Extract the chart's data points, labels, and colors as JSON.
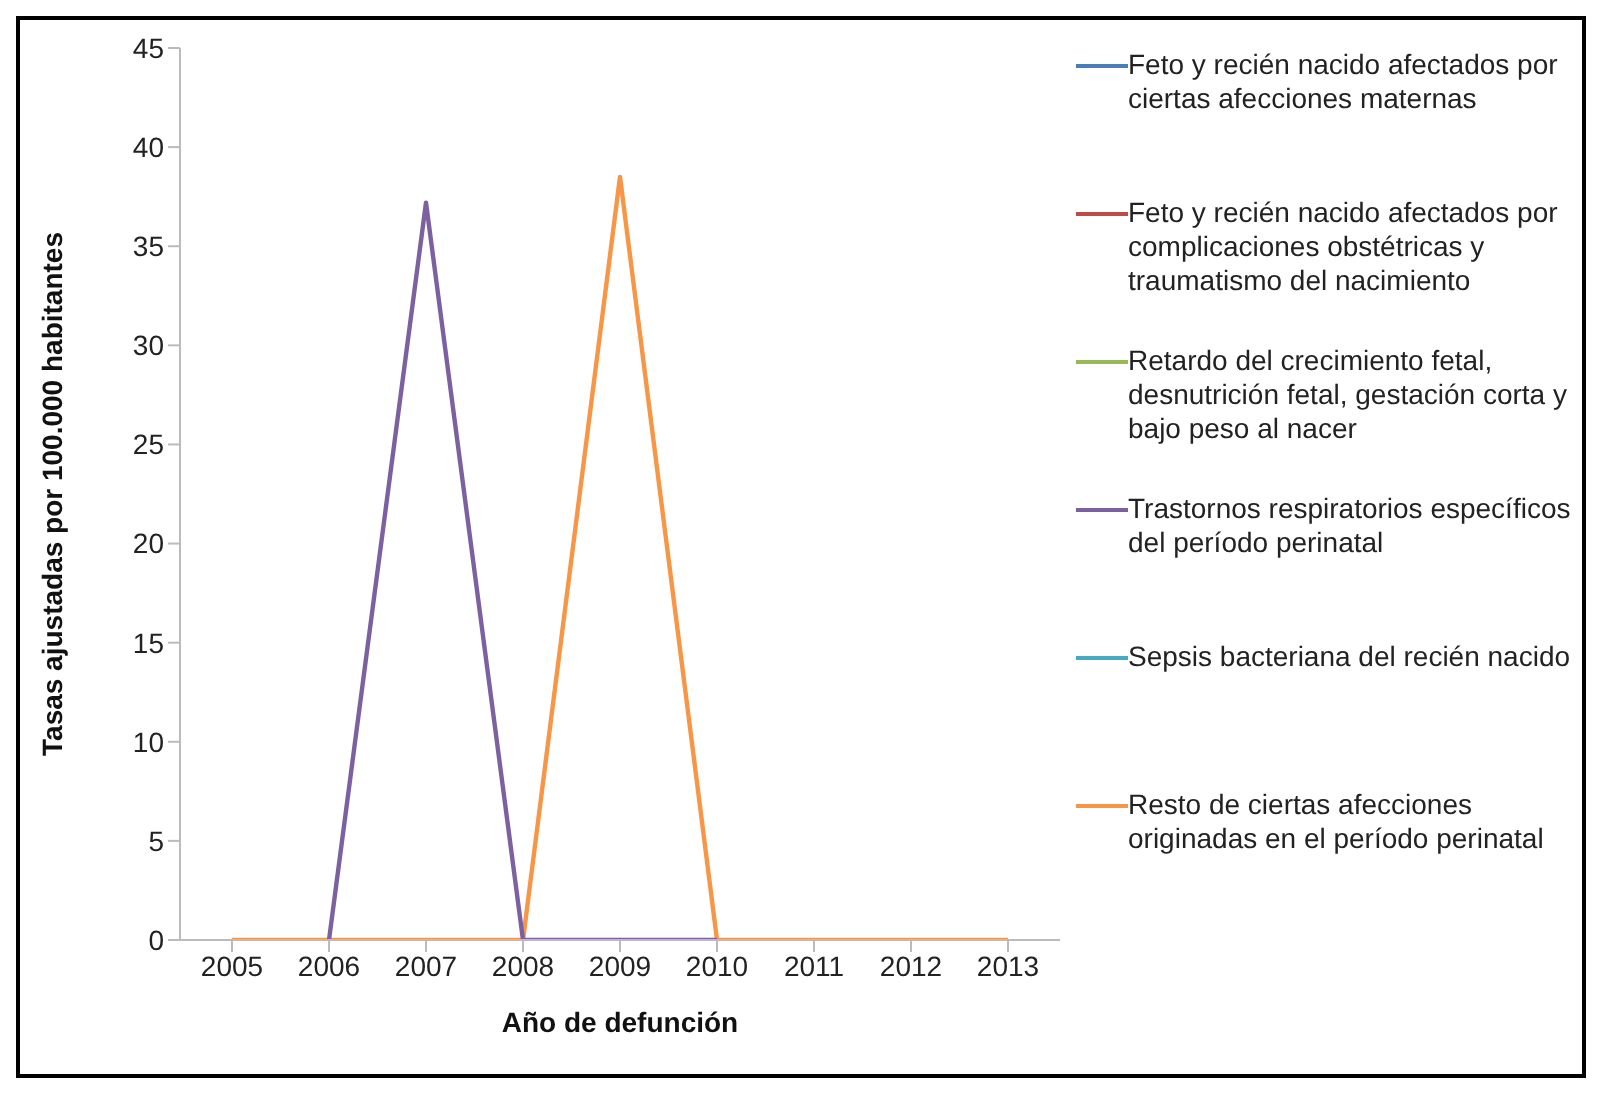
{
  "chart_data": {
    "type": "line",
    "xlabel": "Año de defunción",
    "ylabel": "Tasas ajustadas por 100.000 habitantes",
    "categories": [
      "2005",
      "2006",
      "2007",
      "2008",
      "2009",
      "2010",
      "2011",
      "2012",
      "2013"
    ],
    "series": [
      {
        "name": "Feto y recién nacido afectados por ciertas afecciones maternas",
        "color": "#4a7ebb",
        "values": [
          null,
          null,
          null,
          null,
          null,
          null,
          null,
          null,
          null
        ]
      },
      {
        "name": "Feto y recién nacido afectados por complicaciones obstétricas y traumatismo del nacimiento",
        "color": "#be4b48",
        "values": [
          null,
          null,
          null,
          null,
          null,
          null,
          null,
          null,
          null
        ]
      },
      {
        "name": "Retardo del crecimiento fetal, desnutrición fetal, gestación corta y bajo peso al nacer",
        "color": "#98b954",
        "values": [
          null,
          null,
          null,
          null,
          null,
          null,
          null,
          null,
          null
        ]
      },
      {
        "name": "Trastornos respiratorios específicos del período perinatal",
        "color": "#7d60a0",
        "values": [
          null,
          0,
          37.2,
          0,
          0,
          0,
          null,
          null,
          null
        ]
      },
      {
        "name": "Sepsis bacteriana del recién nacido",
        "color": "#46aac5",
        "values": [
          null,
          null,
          null,
          null,
          null,
          null,
          null,
          null,
          null
        ]
      },
      {
        "name": "Resto de ciertas afecciones originadas en el período perinatal",
        "color": "#f79646",
        "values": [
          0,
          0,
          0,
          0,
          38.5,
          0,
          0,
          0,
          0
        ]
      }
    ],
    "ylim": [
      0,
      45
    ],
    "yticks": [
      0,
      5,
      10,
      15,
      20,
      25,
      30,
      35,
      40,
      45
    ],
    "grid": false,
    "legend": "right",
    "marker": "none",
    "line_style": "solid"
  }
}
